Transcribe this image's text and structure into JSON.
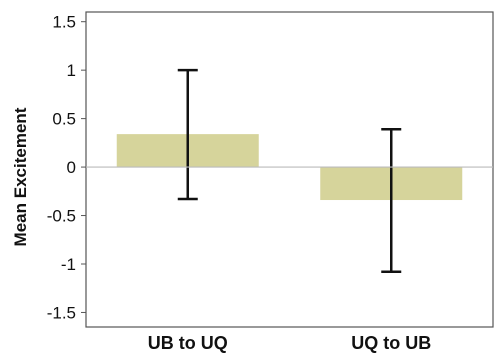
{
  "chart_data": {
    "type": "bar",
    "categories": [
      "UB to UQ",
      "UQ to UB"
    ],
    "values": [
      0.34,
      -0.34
    ],
    "error_low": [
      -0.33,
      -1.08
    ],
    "error_high": [
      1.0,
      0.39
    ],
    "ylabel": "Mean Excitement",
    "xlabel": "",
    "ylim": [
      -1.65,
      1.6
    ],
    "yticks": [
      1.5,
      1,
      0.5,
      0,
      -0.5,
      -1,
      -1.5
    ],
    "ytick_labels": [
      "1.5",
      "1",
      "0.5",
      "0",
      "-0.5",
      "-1",
      "-1.5"
    ],
    "grid": false,
    "colors": {
      "bar": "#d6d49b",
      "error": "#111111",
      "zero_line": "#bbbbbb",
      "frame": "#555555"
    }
  }
}
